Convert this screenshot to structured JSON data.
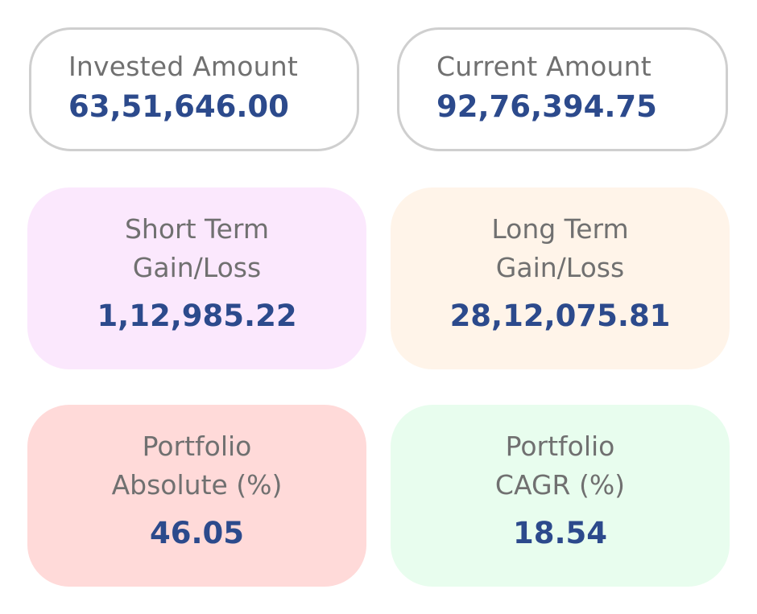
{
  "invested": {
    "label": "Invested Amount",
    "value": "63,51,646.00"
  },
  "current": {
    "label": "Current Amount",
    "value": "92,76,394.75"
  },
  "short_term": {
    "label": "Short Term\nGain/Loss",
    "value": "1,12,985.22"
  },
  "long_term": {
    "label": "Long Term\nGain/Loss",
    "value": "28,12,075.81"
  },
  "portfolio_absolute": {
    "label": "Portfolio\nAbsolute (%)",
    "value": "46.05"
  },
  "portfolio_cagr": {
    "label": "Portfolio\nCAGR (%)",
    "value": "18.54"
  },
  "colors": {
    "value_text": "#2c4a8c",
    "label_text": "#707070",
    "outline_border": "#cfcfcf",
    "short_term_bg": "#fbe8fd",
    "long_term_bg": "#fff4e9",
    "absolute_bg": "#ffdad9",
    "cagr_bg": "#e8fdee"
  }
}
